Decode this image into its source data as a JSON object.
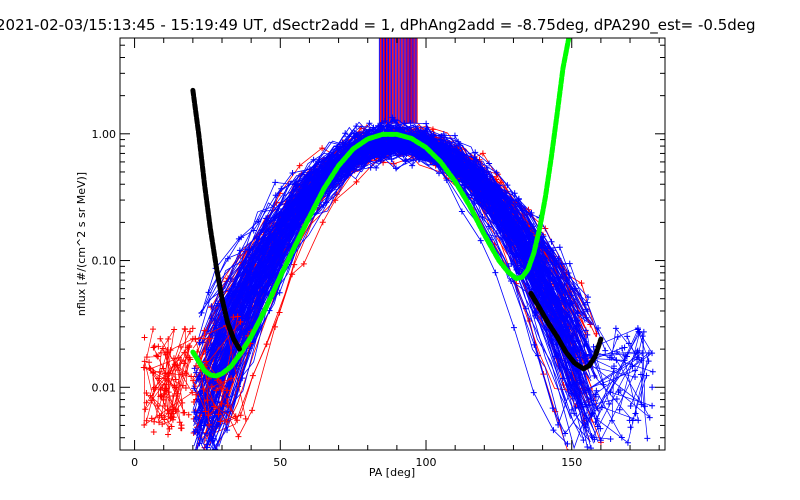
{
  "chart_data": {
    "type": "line",
    "title": "2021-02-03/15:13:45 - 15:19:49 UT, dSectr2add = 1, dPhAng2add = -8.75deg, dPA290_est=  -0.5deg",
    "xlabel": "PA [deg]",
    "ylabel": "nflux [#/(cm^2 s sr MeV)]",
    "xlim": [
      -5,
      182
    ],
    "ylim": [
      0.0032,
      5.7
    ],
    "yscale": "log",
    "x_ticks": [
      0,
      50,
      100,
      150
    ],
    "x_tick_labels": [
      "0",
      "50",
      "100",
      "150"
    ],
    "y_ticks": [
      0.01,
      0.1,
      1.0
    ],
    "y_tick_labels": [
      "0.01",
      "0.10",
      "1.00"
    ],
    "grid": false,
    "colors": {
      "red": "#ff0000",
      "blue": "#0000ff",
      "black": "#000000",
      "green": "#00ff00",
      "purple": "#8000a0"
    },
    "series": [
      {
        "color": "#00ff00",
        "style": "thick-dashed",
        "x": [
          20,
          22,
          24,
          26,
          28,
          30,
          33,
          36,
          40,
          45,
          50,
          55,
          60,
          65,
          70,
          75,
          80,
          85,
          90,
          95,
          100,
          105,
          110,
          115,
          120,
          125,
          128,
          131,
          133,
          135,
          137,
          139,
          141,
          143,
          145,
          147,
          149
        ],
        "y": [
          0.019,
          0.016,
          0.0135,
          0.0125,
          0.0123,
          0.0128,
          0.0145,
          0.018,
          0.025,
          0.042,
          0.075,
          0.13,
          0.22,
          0.37,
          0.56,
          0.76,
          0.91,
          0.99,
          0.99,
          0.92,
          0.78,
          0.6,
          0.42,
          0.27,
          0.16,
          0.1,
          0.082,
          0.072,
          0.074,
          0.085,
          0.115,
          0.18,
          0.32,
          0.65,
          1.45,
          3.3,
          5.7
        ]
      },
      {
        "color": "#000000",
        "style": "thick-dashed",
        "x": [
          20,
          22,
          24,
          26,
          28,
          30,
          32,
          34,
          36
        ],
        "y": [
          2.2,
          1.0,
          0.4,
          0.18,
          0.09,
          0.05,
          0.032,
          0.024,
          0.02
        ]
      },
      {
        "color": "#000000",
        "style": "thick-dashed",
        "x": [
          136,
          139,
          142,
          145,
          148,
          151,
          154,
          156,
          158,
          160
        ],
        "y": [
          0.055,
          0.042,
          0.032,
          0.025,
          0.019,
          0.0155,
          0.014,
          0.0148,
          0.0175,
          0.024
        ]
      }
    ],
    "scatter_clouds": [
      {
        "color": "#ff0000",
        "x_range": [
          3,
          20
        ],
        "y_range": [
          0.004,
          0.03
        ],
        "note": "low-PA noise points"
      },
      {
        "color": "#0000ff",
        "x_range": [
          20,
          160
        ],
        "y_range": [
          0.0032,
          1.2
        ],
        "note": "bulk of blue traces following bell shape"
      },
      {
        "color": "#ff0000",
        "x_range": [
          20,
          160
        ],
        "y_range": [
          0.0032,
          1.2
        ],
        "note": "red traces following bell shape"
      },
      {
        "color": "#0000ff",
        "x_range": [
          150,
          178
        ],
        "y_range": [
          0.0032,
          0.03
        ],
        "note": "high-PA noise points"
      }
    ],
    "vertical_bars": {
      "x_range": [
        84,
        97
      ],
      "y_from": 1.2,
      "y_to": 5.7,
      "colors": [
        "#0000ff",
        "#ff0000",
        "#8000a0"
      ]
    }
  }
}
